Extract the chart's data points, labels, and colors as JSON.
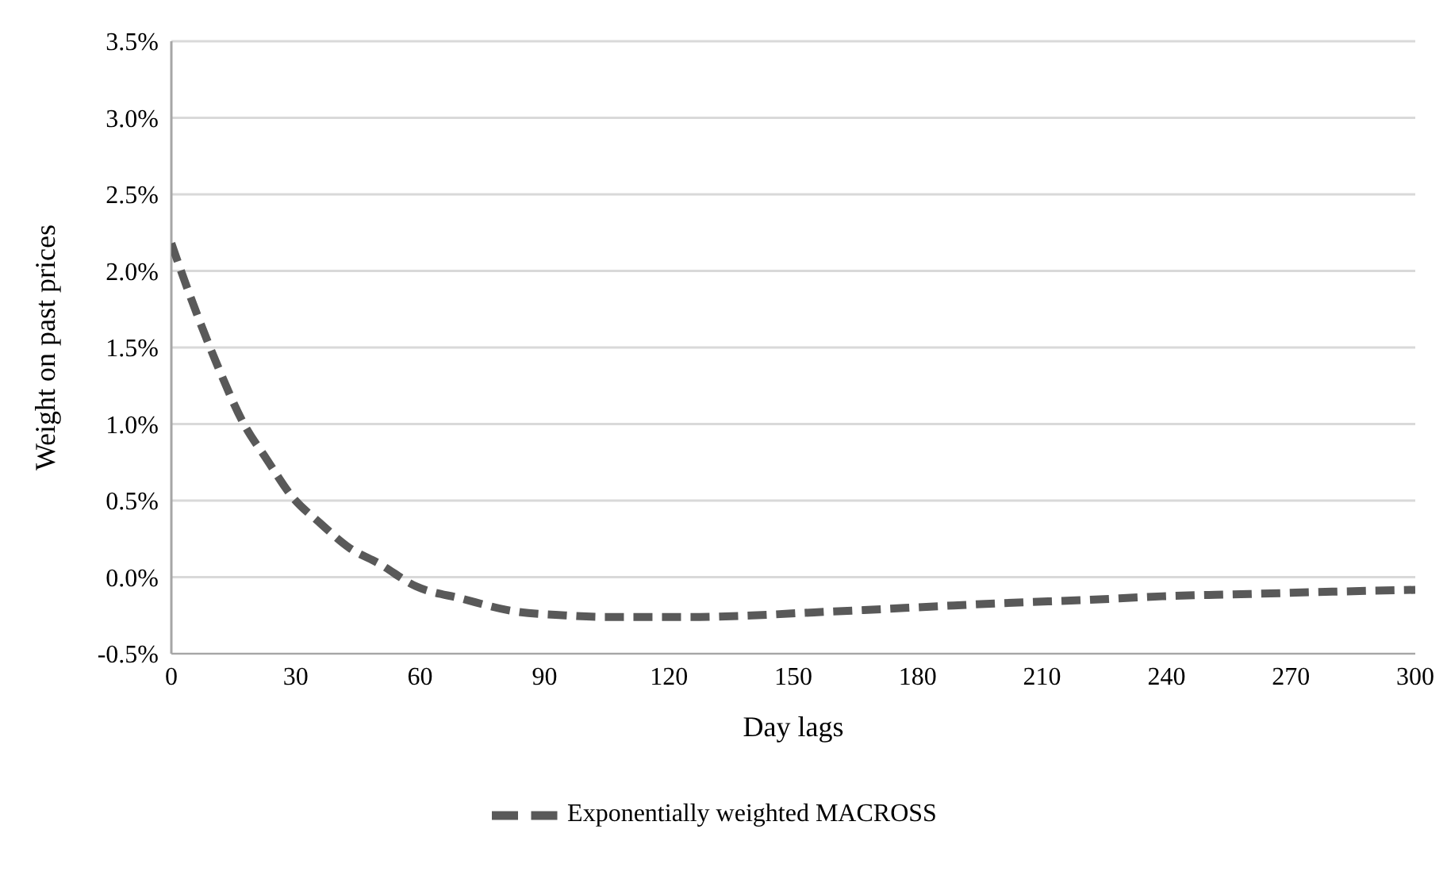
{
  "chart_data": {
    "type": "line",
    "xlabel": "Day lags",
    "ylabel": "Weight on past prices",
    "x": [
      0,
      3,
      6,
      11,
      17.5,
      23,
      29,
      36,
      43,
      50,
      59,
      70,
      82,
      95,
      105,
      114,
      125,
      140,
      155,
      167,
      185,
      203,
      220,
      239,
      260,
      280,
      300
    ],
    "series": [
      {
        "name": "Exponentially weighted MACROSS",
        "color": "#595959",
        "values": [
          0.0218,
          0.0195,
          0.0173,
          0.0139,
          0.01,
          0.0077,
          0.0053,
          0.0035,
          0.0019,
          0.0009,
          -0.0006,
          -0.0014,
          -0.0022,
          -0.0025,
          -0.0026,
          -0.0026,
          -0.0026,
          -0.0025,
          -0.0023,
          -0.00215,
          -0.0019,
          -0.00167,
          -0.0015,
          -0.00125,
          -0.0011,
          -0.00095,
          -0.00083
        ]
      }
    ],
    "xlim": [
      0,
      300
    ],
    "xticks": [
      0,
      30,
      60,
      90,
      120,
      150,
      180,
      210,
      240,
      270,
      300
    ],
    "ylim": [
      -0.005,
      0.035
    ],
    "yticks": [
      {
        "value": -0.005,
        "label": "-0.5%"
      },
      {
        "value": 0,
        "label": "0.0%"
      },
      {
        "value": 0.005,
        "label": "0.5%"
      },
      {
        "value": 0.01,
        "label": "1.0%"
      },
      {
        "value": 0.015,
        "label": "1.5%"
      },
      {
        "value": 0.02,
        "label": "2.0%"
      },
      {
        "value": 0.025,
        "label": "2.5%"
      },
      {
        "value": 0.03,
        "label": "3.0%"
      },
      {
        "value": 0.035,
        "label": "3.5%"
      }
    ],
    "grid": "y",
    "legend": "bottom",
    "line_style": "dashed",
    "marker": "none"
  }
}
